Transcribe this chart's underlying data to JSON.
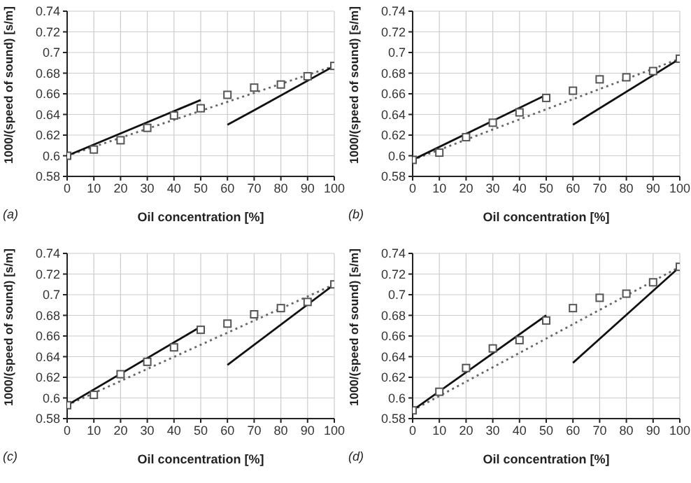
{
  "chart_data": [
    {
      "type": "scatter",
      "xlabel": "Oil concentration [%]",
      "ylabel": "1000/(speed of sound) [s/m]",
      "annotations": [
        "(a)"
      ],
      "xlim": [
        0,
        100
      ],
      "xticks": [
        0,
        10,
        20,
        30,
        40,
        50,
        60,
        70,
        80,
        90,
        100
      ],
      "ylim": [
        0.58,
        0.74
      ],
      "yticks": [
        0.58,
        0.6,
        0.62,
        0.64,
        0.66,
        0.68,
        0.7,
        0.72,
        0.74
      ],
      "grid": true,
      "x": [
        0,
        10,
        20,
        30,
        40,
        50,
        60,
        70,
        80,
        90,
        100
      ],
      "series": [
        {
          "type": "line",
          "x": [
            0,
            100
          ],
          "values": [
            0.6,
            0.687
          ],
          "color": "#666666",
          "line_style": "dotted",
          "marker": "none"
        },
        {
          "type": "line",
          "x": [
            0,
            50
          ],
          "values": [
            0.6,
            0.654
          ],
          "color": "#111111",
          "line_style": "solid",
          "marker": "none"
        },
        {
          "type": "line",
          "x": [
            60,
            70,
            100
          ],
          "values": [
            0.63,
            0.644,
            0.687
          ],
          "color": "#111111",
          "line_style": "solid",
          "marker": "none"
        },
        {
          "values": [
            0.6,
            0.606,
            0.615,
            0.627,
            0.639,
            0.646,
            0.659,
            0.666,
            0.669,
            0.677,
            0.687
          ],
          "color": "#555555",
          "marker": "square"
        }
      ]
    },
    {
      "type": "scatter",
      "xlabel": "Oil concentration [%]",
      "ylabel": "1000/(speed of sound) [s/m]",
      "annotations": [
        "(b)"
      ],
      "xlim": [
        0,
        100
      ],
      "xticks": [
        0,
        10,
        20,
        30,
        40,
        50,
        60,
        70,
        80,
        90,
        100
      ],
      "ylim": [
        0.58,
        0.74
      ],
      "yticks": [
        0.58,
        0.6,
        0.62,
        0.64,
        0.66,
        0.68,
        0.7,
        0.72,
        0.74
      ],
      "grid": true,
      "x": [
        0,
        10,
        20,
        30,
        40,
        50,
        60,
        70,
        80,
        90,
        100
      ],
      "series": [
        {
          "type": "line",
          "x": [
            0,
            100
          ],
          "values": [
            0.596,
            0.694
          ],
          "color": "#666666",
          "line_style": "dotted",
          "marker": "none"
        },
        {
          "type": "line",
          "x": [
            0,
            50
          ],
          "values": [
            0.596,
            0.659
          ],
          "color": "#111111",
          "line_style": "solid",
          "marker": "none"
        },
        {
          "type": "line",
          "x": [
            60,
            100
          ],
          "values": [
            0.63,
            0.694
          ],
          "color": "#111111",
          "line_style": "solid",
          "marker": "none"
        },
        {
          "values": [
            0.596,
            0.603,
            0.618,
            0.632,
            0.642,
            0.656,
            0.663,
            0.674,
            0.676,
            0.682,
            0.694
          ],
          "color": "#555555",
          "marker": "square"
        }
      ]
    },
    {
      "type": "scatter",
      "xlabel": "Oil concentration [%]",
      "ylabel": "1000/(speed of sound) [s/m]",
      "annotations": [
        "(c)"
      ],
      "xlim": [
        0,
        100
      ],
      "xticks": [
        0,
        10,
        20,
        30,
        40,
        50,
        60,
        70,
        80,
        90,
        100
      ],
      "ylim": [
        0.58,
        0.74
      ],
      "yticks": [
        0.58,
        0.6,
        0.62,
        0.64,
        0.66,
        0.68,
        0.7,
        0.72,
        0.74
      ],
      "grid": true,
      "x": [
        0,
        10,
        20,
        30,
        40,
        50,
        60,
        70,
        80,
        90,
        100
      ],
      "series": [
        {
          "type": "line",
          "x": [
            0,
            100
          ],
          "values": [
            0.593,
            0.71
          ],
          "color": "#666666",
          "line_style": "dotted",
          "marker": "none"
        },
        {
          "type": "line",
          "x": [
            0,
            50
          ],
          "values": [
            0.593,
            0.669
          ],
          "color": "#111111",
          "line_style": "solid",
          "marker": "none"
        },
        {
          "type": "line",
          "x": [
            60,
            100
          ],
          "values": [
            0.632,
            0.71
          ],
          "color": "#111111",
          "line_style": "solid",
          "marker": "none"
        },
        {
          "values": [
            0.593,
            0.603,
            0.623,
            0.635,
            0.649,
            0.666,
            0.672,
            0.681,
            0.687,
            0.693,
            0.71
          ],
          "color": "#555555",
          "marker": "square"
        }
      ]
    },
    {
      "type": "scatter",
      "xlabel": "Oil concentration [%]",
      "ylabel": "1000/(speed of sound) [s/m]",
      "annotations": [
        "(d)"
      ],
      "xlim": [
        0,
        100
      ],
      "xticks": [
        0,
        10,
        20,
        30,
        40,
        50,
        60,
        70,
        80,
        90,
        100
      ],
      "ylim": [
        0.58,
        0.74
      ],
      "yticks": [
        0.58,
        0.6,
        0.62,
        0.64,
        0.66,
        0.68,
        0.7,
        0.72,
        0.74
      ],
      "grid": true,
      "x": [
        0,
        10,
        20,
        30,
        40,
        50,
        60,
        70,
        80,
        90,
        100
      ],
      "series": [
        {
          "type": "line",
          "x": [
            0,
            100
          ],
          "values": [
            0.588,
            0.727
          ],
          "color": "#666666",
          "line_style": "dotted",
          "marker": "none"
        },
        {
          "type": "line",
          "x": [
            0,
            50
          ],
          "values": [
            0.588,
            0.68
          ],
          "color": "#111111",
          "line_style": "solid",
          "marker": "none"
        },
        {
          "type": "line",
          "x": [
            60,
            100
          ],
          "values": [
            0.634,
            0.727
          ],
          "color": "#111111",
          "line_style": "solid",
          "marker": "none"
        },
        {
          "values": [
            0.588,
            0.606,
            0.629,
            0.648,
            0.656,
            0.675,
            0.687,
            0.697,
            0.701,
            0.712,
            0.727
          ],
          "color": "#555555",
          "marker": "square"
        }
      ]
    }
  ]
}
